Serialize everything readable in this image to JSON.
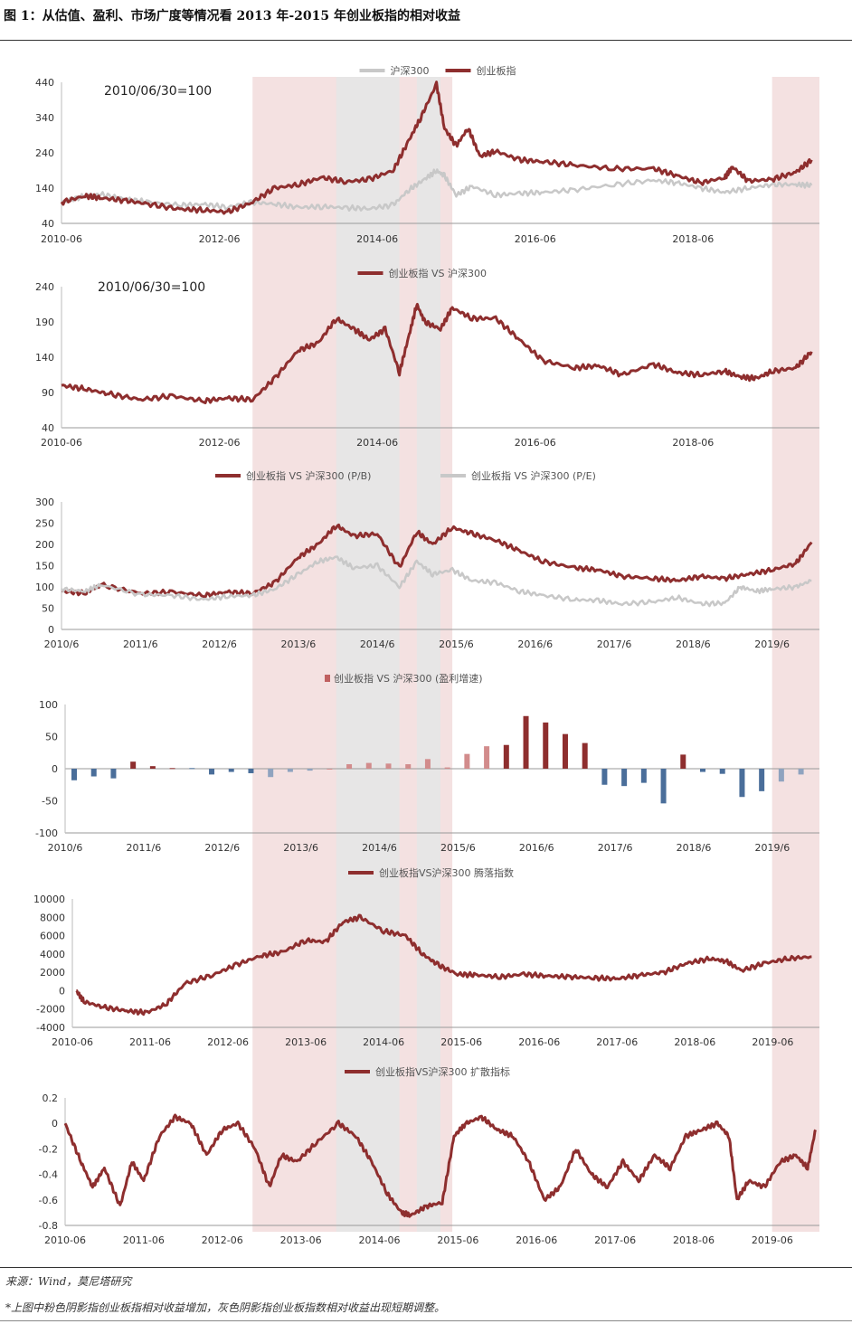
{
  "figure_title": "图 1：从估值、盈利、市场广度等情况看 2013 年-2015 年创业板指的相对收益",
  "source_note": "来源：Wind，莫尼塔研究",
  "footnote": "*上图中粉色阴影指创业板指相对收益增加，灰色阴影指创业板指数相对收益出现短期调整。",
  "colors": {
    "dark_red": "#8E2E2E",
    "mid_red": "#B96A6A",
    "gray": "#C8C8C8",
    "pink_band": "#F2DCDC",
    "gray_band": "#E6E6E6",
    "blue": "#4A6E9A",
    "light_blue": "#8FA3BF",
    "light_red": "#D28C8C"
  },
  "highlight_periods": [
    {
      "kind": "pink",
      "start": 2012.92,
      "end": 2015.45
    },
    {
      "kind": "gray",
      "start": 2013.98,
      "end": 2014.78
    },
    {
      "kind": "gray",
      "start": 2015.0,
      "end": 2015.3
    },
    {
      "kind": "pink",
      "start": 2019.5,
      "end": 2020.1
    }
  ],
  "chart_data": [
    {
      "id": "index-level",
      "type": "line",
      "annotation": "2010/06/30=100",
      "ylim": [
        40,
        440
      ],
      "yticks": [
        40,
        140,
        240,
        340,
        440
      ],
      "xtick_labels": [
        "2010-06",
        "2012-06",
        "2014-06",
        "2016-06",
        "2018-06"
      ],
      "xtick_positions": [
        2010.5,
        2012.5,
        2014.5,
        2016.5,
        2018.5
      ],
      "series": [
        {
          "name": "沪深300",
          "color": "#C8C8C8",
          "x": [
            2010.5,
            2010.8,
            2011.0,
            2011.3,
            2011.6,
            2012.0,
            2012.3,
            2012.6,
            2012.9,
            2013.2,
            2013.5,
            2013.8,
            2014.1,
            2014.4,
            2014.7,
            2014.9,
            2015.1,
            2015.25,
            2015.35,
            2015.5,
            2015.7,
            2016.0,
            2016.3,
            2016.6,
            2017.0,
            2017.5,
            2018.0,
            2018.3,
            2018.6,
            2018.9,
            2019.2,
            2019.5,
            2019.8,
            2020.0
          ],
          "y": [
            100,
            118,
            122,
            110,
            100,
            92,
            94,
            86,
            100,
            95,
            85,
            88,
            84,
            82,
            92,
            135,
            165,
            190,
            175,
            120,
            145,
            120,
            125,
            128,
            135,
            150,
            162,
            155,
            140,
            128,
            140,
            150,
            150,
            148
          ]
        },
        {
          "name": "创业板指",
          "color": "#8E2E2E",
          "x": [
            2010.5,
            2010.8,
            2011.0,
            2011.3,
            2011.6,
            2012.0,
            2012.3,
            2012.6,
            2012.9,
            2013.2,
            2013.5,
            2013.8,
            2014.1,
            2014.4,
            2014.7,
            2014.9,
            2015.05,
            2015.25,
            2015.35,
            2015.5,
            2015.65,
            2015.8,
            2016.0,
            2016.3,
            2016.6,
            2017.0,
            2017.5,
            2018.0,
            2018.3,
            2018.6,
            2018.9,
            2019.0,
            2019.2,
            2019.5,
            2019.8,
            2020.0
          ],
          "y": [
            100,
            118,
            112,
            105,
            95,
            80,
            78,
            72,
            98,
            140,
            150,
            170,
            158,
            165,
            190,
            275,
            340,
            435,
            310,
            260,
            310,
            230,
            245,
            220,
            215,
            205,
            195,
            195,
            175,
            155,
            170,
            200,
            160,
            165,
            185,
            220
          ]
        }
      ]
    },
    {
      "id": "relative-return",
      "type": "line",
      "annotation": "2010/06/30=100",
      "ylim": [
        40,
        240
      ],
      "yticks": [
        40,
        90,
        140,
        190,
        240
      ],
      "xtick_labels": [
        "2010-06",
        "2012-06",
        "2014-06",
        "2016-06",
        "2018-06"
      ],
      "xtick_positions": [
        2010.5,
        2012.5,
        2014.5,
        2016.5,
        2018.5
      ],
      "series": [
        {
          "name": "创业板指 VS 沪深300",
          "color": "#8E2E2E",
          "x": [
            2010.5,
            2010.8,
            2011.1,
            2011.5,
            2011.9,
            2012.3,
            2012.6,
            2012.92,
            2013.2,
            2013.5,
            2013.75,
            2013.98,
            2014.2,
            2014.4,
            2014.6,
            2014.78,
            2014.9,
            2015.0,
            2015.1,
            2015.3,
            2015.45,
            2015.7,
            2016.0,
            2016.3,
            2016.6,
            2017.0,
            2017.3,
            2017.6,
            2018.0,
            2018.3,
            2018.6,
            2018.9,
            2019.1,
            2019.3,
            2019.5,
            2019.8,
            2020.0
          ],
          "y": [
            100,
            95,
            88,
            80,
            85,
            78,
            82,
            80,
            110,
            150,
            160,
            195,
            180,
            165,
            180,
            118,
            170,
            215,
            190,
            180,
            210,
            195,
            195,
            165,
            135,
            125,
            128,
            115,
            130,
            118,
            115,
            120,
            112,
            110,
            120,
            125,
            148
          ]
        }
      ]
    },
    {
      "id": "valuation",
      "type": "line",
      "ylim": [
        0,
        300
      ],
      "yticks": [
        0,
        50,
        100,
        150,
        200,
        250,
        300
      ],
      "xtick_labels": [
        "2010/6",
        "2011/6",
        "2012/6",
        "2013/6",
        "2014/6",
        "2015/6",
        "2016/6",
        "2017/6",
        "2018/6",
        "2019/6"
      ],
      "xtick_positions": [
        2010.5,
        2011.5,
        2012.5,
        2013.5,
        2014.5,
        2015.5,
        2016.5,
        2017.5,
        2018.5,
        2019.5
      ],
      "series": [
        {
          "name": "创业板指 VS 沪深300 (P/B)",
          "color": "#8E2E2E",
          "x": [
            2010.5,
            2010.8,
            2011.0,
            2011.5,
            2011.9,
            2012.3,
            2012.6,
            2012.92,
            2013.2,
            2013.5,
            2013.75,
            2013.98,
            2014.2,
            2014.5,
            2014.78,
            2015.0,
            2015.2,
            2015.45,
            2015.7,
            2016.0,
            2016.3,
            2016.6,
            2017.0,
            2017.3,
            2017.6,
            2018.0,
            2018.3,
            2018.6,
            2018.9,
            2019.2,
            2019.5,
            2019.8,
            2020.0
          ],
          "y": [
            90,
            85,
            105,
            85,
            88,
            80,
            88,
            85,
            110,
            170,
            200,
            245,
            220,
            225,
            145,
            230,
            200,
            240,
            225,
            210,
            185,
            160,
            145,
            140,
            125,
            120,
            115,
            125,
            120,
            130,
            140,
            155,
            205
          ]
        },
        {
          "name": "创业板指 VS 沪深300 (P/E)",
          "color": "#C8C8C8",
          "x": [
            2010.5,
            2010.8,
            2011.0,
            2011.5,
            2011.9,
            2012.3,
            2012.6,
            2012.92,
            2013.2,
            2013.5,
            2013.75,
            2013.98,
            2014.2,
            2014.5,
            2014.78,
            2015.0,
            2015.2,
            2015.45,
            2015.7,
            2016.0,
            2016.3,
            2016.6,
            2017.0,
            2017.3,
            2017.6,
            2018.0,
            2018.3,
            2018.6,
            2018.9,
            2019.1,
            2019.3,
            2019.5,
            2019.8,
            2020.0
          ],
          "y": [
            95,
            90,
            105,
            82,
            80,
            70,
            78,
            80,
            95,
            130,
            160,
            170,
            145,
            150,
            100,
            160,
            130,
            140,
            115,
            110,
            90,
            80,
            70,
            68,
            60,
            65,
            75,
            60,
            62,
            100,
            90,
            95,
            100,
            115
          ]
        }
      ]
    },
    {
      "id": "earnings-growth",
      "type": "bar",
      "ylim": [
        -100,
        100
      ],
      "yticks": [
        -100,
        -50,
        0,
        50,
        100
      ],
      "xtick_labels": [
        "2010/6",
        "2011/6",
        "2012/6",
        "2013/6",
        "2014/6",
        "2015/6",
        "2016/6",
        "2017/6",
        "2018/6",
        "2019/6"
      ],
      "xtick_positions": [
        2010.5,
        2011.5,
        2012.5,
        2013.5,
        2014.5,
        2015.5,
        2016.5,
        2017.5,
        2018.5,
        2019.5
      ],
      "series": [
        {
          "name": "创业板指 VS 沪深300 (盈利增速)",
          "color": "#C06060",
          "x": [
            2010.5,
            2010.75,
            2011.0,
            2011.25,
            2011.5,
            2011.75,
            2012.0,
            2012.25,
            2012.5,
            2012.75,
            2013.0,
            2013.25,
            2013.5,
            2013.75,
            2014.0,
            2014.25,
            2014.5,
            2014.75,
            2015.0,
            2015.25,
            2015.5,
            2015.75,
            2016.0,
            2016.25,
            2016.5,
            2016.75,
            2017.0,
            2017.25,
            2017.5,
            2017.75,
            2018.0,
            2018.25,
            2018.5,
            2018.75,
            2019.0,
            2019.25,
            2019.5,
            2019.75
          ],
          "values": [
            -18,
            -12,
            -15,
            11,
            4,
            1,
            1,
            -9,
            -5,
            -7,
            -13,
            -5,
            -3,
            0,
            7,
            9,
            8,
            7,
            15,
            2,
            23,
            35,
            37,
            82,
            72,
            54,
            40,
            -25,
            -27,
            -22,
            -54,
            22,
            -5,
            -8,
            -44,
            -35,
            -20,
            -9
          ],
          "bar_colors": [
            "#4A6E9A",
            "#4A6E9A",
            "#4A6E9A",
            "#8E2E2E",
            "#8E2E2E",
            "#8E2E2E",
            "#4A6E9A",
            "#4A6E9A",
            "#4A6E9A",
            "#4A6E9A",
            "#8FA3BF",
            "#8FA3BF",
            "#8FA3BF",
            "#D28C8C",
            "#D28C8C",
            "#D28C8C",
            "#D28C8C",
            "#D28C8C",
            "#D28C8C",
            "#D28C8C",
            "#D28C8C",
            "#D28C8C",
            "#8E2E2E",
            "#8E2E2E",
            "#8E2E2E",
            "#8E2E2E",
            "#8E2E2E",
            "#4A6E9A",
            "#4A6E9A",
            "#4A6E9A",
            "#4A6E9A",
            "#8E2E2E",
            "#4A6E9A",
            "#4A6E9A",
            "#4A6E9A",
            "#4A6E9A",
            "#8FA3BF",
            "#8FA3BF"
          ]
        }
      ]
    },
    {
      "id": "advance-decline",
      "type": "line",
      "ylim": [
        -4000,
        10000
      ],
      "yticks": [
        -4000,
        -2000,
        0,
        2000,
        4000,
        6000,
        8000,
        10000
      ],
      "xtick_labels": [
        "2010-06",
        "2011-06",
        "2012-06",
        "2013-06",
        "2014-06",
        "2015-06",
        "2016-06",
        "2017-06",
        "2018-06",
        "2019-06"
      ],
      "xtick_positions": [
        2010.5,
        2011.5,
        2012.5,
        2013.5,
        2014.5,
        2015.5,
        2016.5,
        2017.5,
        2018.5,
        2019.5
      ],
      "series": [
        {
          "name": "创业板指VS沪深300 腾落指数",
          "color": "#8E2E2E",
          "x": [
            2010.55,
            2010.65,
            2010.9,
            2011.2,
            2011.45,
            2011.7,
            2011.95,
            2012.3,
            2012.6,
            2012.92,
            2013.2,
            2013.5,
            2013.75,
            2013.98,
            2014.2,
            2014.5,
            2014.78,
            2015.0,
            2015.2,
            2015.45,
            2015.7,
            2016.0,
            2016.3,
            2016.6,
            2016.9,
            2017.2,
            2017.5,
            2017.8,
            2018.1,
            2018.4,
            2018.7,
            2018.9,
            2019.1,
            2019.4,
            2019.7,
            2020.0
          ],
          "y": [
            0,
            -1200,
            -1800,
            -2200,
            -2400,
            -1500,
            800,
            1700,
            2800,
            3800,
            4200,
            5500,
            5300,
            7500,
            8000,
            6500,
            6000,
            4000,
            2800,
            1800,
            1700,
            1500,
            1800,
            1600,
            1500,
            1400,
            1300,
            1700,
            2000,
            3000,
            3500,
            3200,
            2200,
            3000,
            3500,
            3700
          ]
        }
      ]
    },
    {
      "id": "diffusion",
      "type": "line",
      "ylim": [
        -0.8,
        0.2
      ],
      "yticks": [
        -0.8,
        -0.6,
        -0.4,
        -0.2,
        0,
        0.2
      ],
      "xtick_labels": [
        "2010-06",
        "2011-06",
        "2012-06",
        "2013-06",
        "2014-06",
        "2015-06",
        "2016-06",
        "2017-06",
        "2018-06",
        "2019-06"
      ],
      "xtick_positions": [
        2010.5,
        2011.5,
        2012.5,
        2013.5,
        2014.5,
        2015.5,
        2016.5,
        2017.5,
        2018.5,
        2019.5
      ],
      "series": [
        {
          "name": "创业板指VS沪深300 扩散指标",
          "color": "#8E2E2E",
          "x": [
            2010.5,
            2010.7,
            2010.85,
            2011.0,
            2011.2,
            2011.35,
            2011.5,
            2011.7,
            2011.9,
            2012.1,
            2012.3,
            2012.5,
            2012.7,
            2012.92,
            2013.1,
            2013.25,
            2013.45,
            2013.7,
            2013.98,
            2014.2,
            2014.4,
            2014.6,
            2014.78,
            2014.9,
            2015.1,
            2015.3,
            2015.45,
            2015.6,
            2015.8,
            2016.0,
            2016.2,
            2016.4,
            2016.6,
            2016.8,
            2017.0,
            2017.2,
            2017.4,
            2017.6,
            2017.8,
            2018.0,
            2018.2,
            2018.4,
            2018.6,
            2018.8,
            2018.95,
            2019.05,
            2019.2,
            2019.4,
            2019.6,
            2019.8,
            2019.95,
            2020.05
          ],
          "y": [
            0,
            -0.3,
            -0.5,
            -0.35,
            -0.65,
            -0.3,
            -0.45,
            -0.1,
            0.05,
            0,
            -0.25,
            -0.05,
            0,
            -0.2,
            -0.5,
            -0.25,
            -0.3,
            -0.15,
            0,
            -0.1,
            -0.3,
            -0.55,
            -0.7,
            -0.72,
            -0.65,
            -0.62,
            -0.1,
            0,
            0.05,
            -0.05,
            -0.1,
            -0.3,
            -0.6,
            -0.5,
            -0.2,
            -0.4,
            -0.5,
            -0.3,
            -0.45,
            -0.25,
            -0.35,
            -0.1,
            -0.05,
            0,
            -0.1,
            -0.6,
            -0.45,
            -0.5,
            -0.3,
            -0.25,
            -0.35,
            -0.05
          ]
        }
      ]
    }
  ]
}
